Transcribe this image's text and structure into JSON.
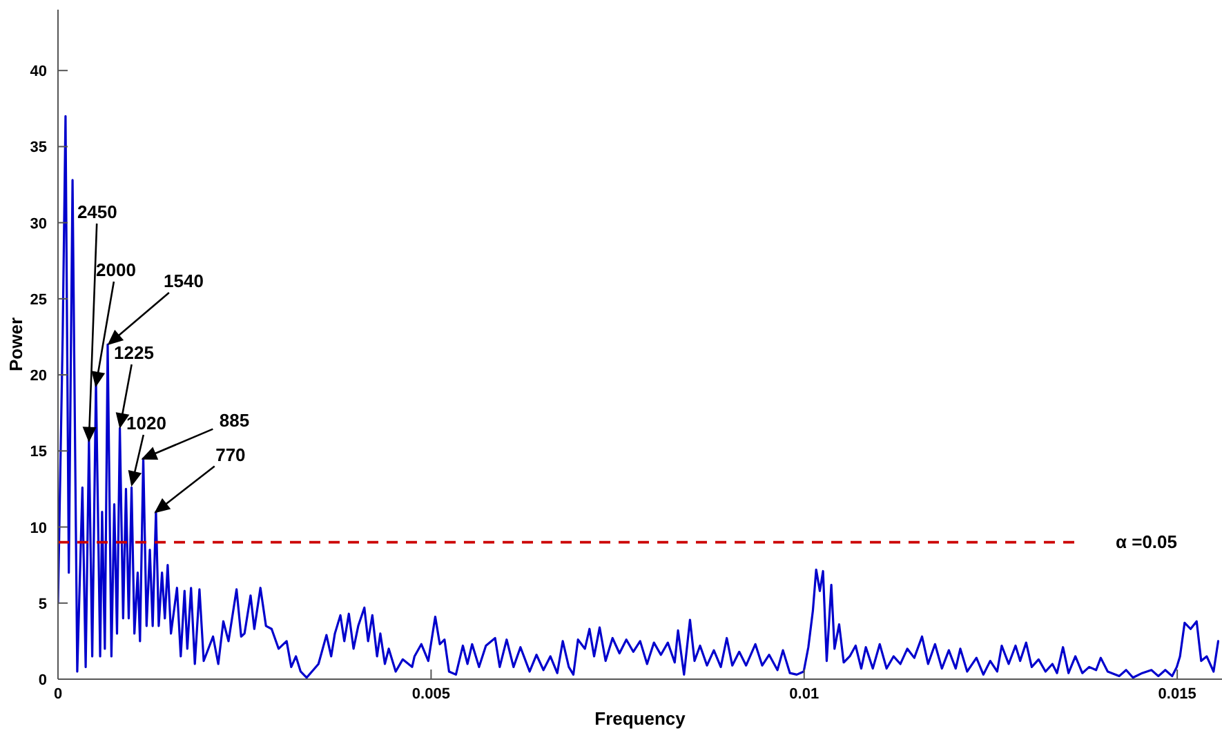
{
  "chart_data": {
    "type": "line",
    "xlabel": "Frequency",
    "ylabel": "Power",
    "xlim": [
      0,
      0.0156
    ],
    "xticks": [
      0,
      0.005,
      0.01,
      0.015
    ],
    "ylim": [
      0,
      44
    ],
    "yticks": [
      0,
      5,
      10,
      15,
      20,
      25,
      30,
      35,
      40
    ],
    "grid": false,
    "marker": "none",
    "line_style": "solid",
    "series": [
      {
        "color": "#0000cc",
        "x": [
          0,
          6.3e-05,
          0.000101,
          0.000145,
          0.000195,
          0.000258,
          0.000327,
          0.000371,
          0.000415,
          0.000459,
          0.000509,
          0.000565,
          0.000591,
          0.000628,
          0.000666,
          0.000716,
          0.000754,
          0.000791,
          0.000829,
          0.000873,
          0.000911,
          0.000948,
          0.000986,
          0.001024,
          0.001068,
          0.001099,
          0.001143,
          0.001187,
          0.001231,
          0.001269,
          0.001313,
          0.00135,
          0.001394,
          0.001432,
          0.00147,
          0.001514,
          0.001595,
          0.001645,
          0.001696,
          0.001733,
          0.001783,
          0.001834,
          0.001896,
          0.001953,
          0.002078,
          0.002148,
          0.002216,
          0.002285,
          0.002393,
          0.002455,
          0.0025,
          0.002581,
          0.002631,
          0.002713,
          0.002787,
          0.002863,
          0.002957,
          0.003064,
          0.003126,
          0.003189,
          0.003252,
          0.003333,
          0.003491,
          0.003598,
          0.003661,
          0.003711,
          0.003785,
          0.003837,
          0.003898,
          0.003961,
          0.004024,
          0.004106,
          0.004156,
          0.004213,
          0.004276,
          0.00432,
          0.004381,
          0.004433,
          0.004526,
          0.00462,
          0.004746,
          0.004778,
          0.00487,
          0.004963,
          0.005056,
          0.005117,
          0.00518,
          0.005241,
          0.005333,
          0.005426,
          0.005488,
          0.00555,
          0.005643,
          0.005735,
          0.005858,
          0.00592,
          0.006013,
          0.006105,
          0.006198,
          0.006321,
          0.006413,
          0.006506,
          0.006599,
          0.006691,
          0.006765,
          0.006846,
          0.006907,
          0.006969,
          0.007062,
          0.007123,
          0.007185,
          0.007259,
          0.007339,
          0.007432,
          0.007525,
          0.007617,
          0.00771,
          0.007802,
          0.007895,
          0.007987,
          0.00808,
          0.008173,
          0.008265,
          0.00831,
          0.00839,
          0.00847,
          0.008531,
          0.008605,
          0.008698,
          0.00879,
          0.008883,
          0.008963,
          0.009037,
          0.00913,
          0.009222,
          0.009346,
          0.009438,
          0.009531,
          0.009642,
          0.009716,
          0.009809,
          0.009901,
          0.009994,
          0.010056,
          0.010117,
          0.010161,
          0.01021,
          0.010253,
          0.010302,
          0.010364,
          0.010407,
          0.010469,
          0.01053,
          0.010611,
          0.01069,
          0.010765,
          0.010827,
          0.01092,
          0.011013,
          0.011105,
          0.011198,
          0.01129,
          0.011383,
          0.011476,
          0.01158,
          0.011661,
          0.011754,
          0.011846,
          0.011939,
          0.012031,
          0.012093,
          0.012185,
          0.012309,
          0.012402,
          0.012494,
          0.012587,
          0.012648,
          0.012741,
          0.012833,
          0.012895,
          0.012975,
          0.01305,
          0.013142,
          0.013235,
          0.013327,
          0.013389,
          0.013469,
          0.013543,
          0.013635,
          0.013728,
          0.01382,
          0.013913,
          0.013975,
          0.014068,
          0.014222,
          0.014315,
          0.014407,
          0.014531,
          0.014654,
          0.014747,
          0.01484,
          0.014932,
          0.014994,
          0.015037,
          0.015099,
          0.015179,
          0.01526,
          0.015321,
          0.015395,
          0.015487,
          0.015549
        ],
        "values": [
          5,
          22.6,
          37,
          7,
          32.8,
          0.5,
          12.6,
          0.8,
          15.7,
          1.5,
          19.5,
          1.5,
          11,
          2,
          22,
          1.5,
          11.5,
          3,
          16.5,
          4,
          12.5,
          4,
          12.6,
          3,
          7,
          2.5,
          14.5,
          3.5,
          8.5,
          3.5,
          11,
          3.5,
          7,
          4,
          7.5,
          3,
          6,
          1.5,
          5.8,
          2,
          6,
          1,
          5.9,
          1.2,
          2.8,
          1,
          3.8,
          2.5,
          5.9,
          2.8,
          3,
          5.5,
          3.3,
          6,
          3.5,
          3.3,
          2,
          2.5,
          0.8,
          1.5,
          0.5,
          0.1,
          1,
          2.9,
          1.5,
          3,
          4.2,
          2.5,
          4.3,
          2,
          3.5,
          4.7,
          2.5,
          4.2,
          1.5,
          3,
          1,
          2,
          0.5,
          1.3,
          0.8,
          1.5,
          2.3,
          1.2,
          4.1,
          2.3,
          2.6,
          0.5,
          0.3,
          2.2,
          1,
          2.3,
          0.8,
          2.2,
          2.7,
          0.8,
          2.6,
          0.8,
          2.1,
          0.5,
          1.6,
          0.6,
          1.5,
          0.4,
          2.5,
          0.8,
          0.3,
          2.6,
          2,
          3.3,
          1.5,
          3.4,
          1.2,
          2.7,
          1.7,
          2.6,
          1.8,
          2.5,
          1,
          2.4,
          1.6,
          2.4,
          1.1,
          3.2,
          0.3,
          3.9,
          1.2,
          2.2,
          0.9,
          1.9,
          0.8,
          2.7,
          0.9,
          1.8,
          0.9,
          2.3,
          0.9,
          1.6,
          0.6,
          1.9,
          0.4,
          0.3,
          0.5,
          2.1,
          4.5,
          7.2,
          5.8,
          7.1,
          1.2,
          6.2,
          2,
          3.6,
          1.1,
          1.5,
          2.2,
          0.7,
          2.1,
          0.7,
          2.3,
          0.7,
          1.5,
          1,
          2,
          1.4,
          2.8,
          1,
          2.3,
          0.7,
          1.9,
          0.7,
          2,
          0.5,
          1.4,
          0.3,
          1.2,
          0.5,
          2.2,
          1,
          2.2,
          1.2,
          2.4,
          0.8,
          1.3,
          0.5,
          1,
          0.4,
          2.1,
          0.4,
          1.5,
          0.4,
          0.8,
          0.6,
          1.4,
          0.5,
          0.2,
          0.6,
          0.1,
          0.4,
          0.6,
          0.2,
          0.6,
          0.2,
          0.8,
          1.5,
          3.7,
          3.3,
          3.8,
          1.2,
          1.5,
          0.5,
          2.5
        ]
      }
    ],
    "ref_lines": [
      {
        "axis": "y",
        "value": 9,
        "color": "#cc0000",
        "line_style": "dashed"
      }
    ],
    "annotations": [
      {
        "text": "2450",
        "x": 0.000415,
        "y": 15.7
      },
      "2000",
      "1540",
      "1225",
      "1020",
      {
        "text": "885",
        "x": 0.001143,
        "y": 14.5
      },
      {
        "text": "770",
        "x": 0.001313,
        "y": 11
      },
      "α =0.05"
    ]
  }
}
